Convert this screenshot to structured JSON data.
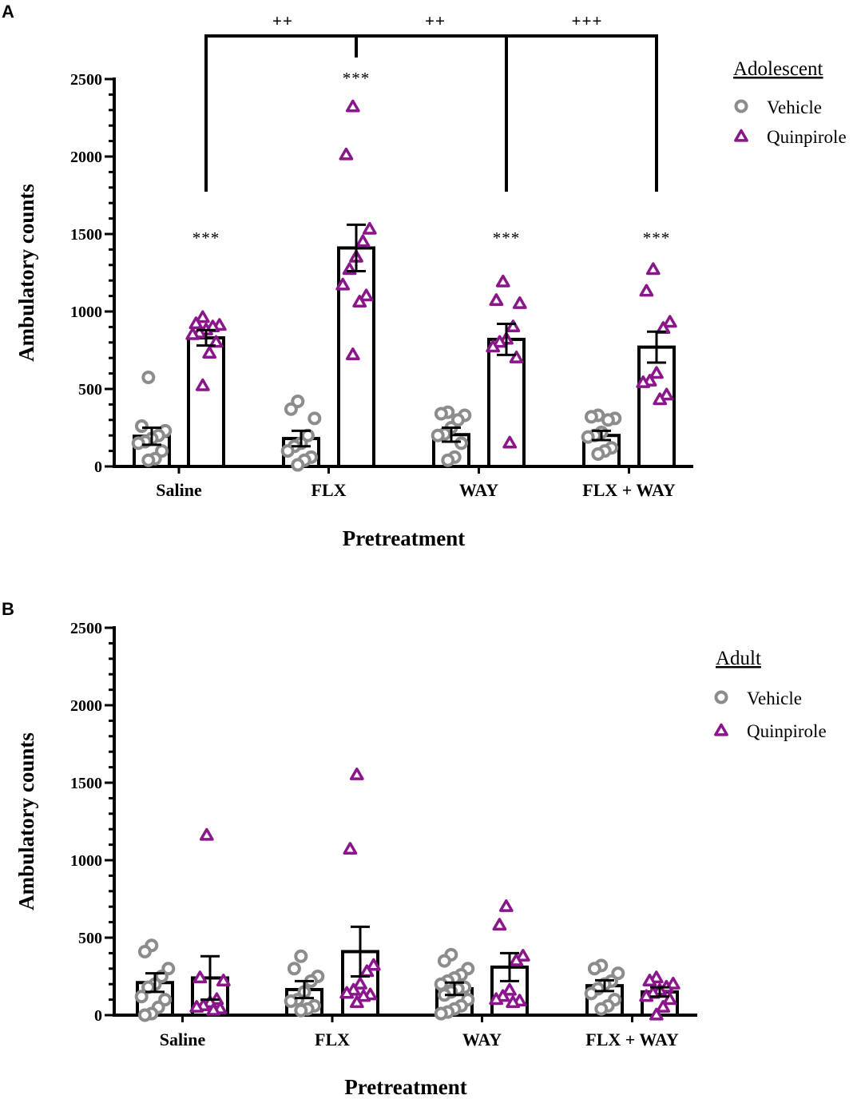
{
  "chart_data": [
    {
      "panel_label": "A",
      "type": "bar",
      "xlabel": "Pretreatment",
      "ylabel": "Ambulatory counts",
      "ylim": [
        0,
        2500
      ],
      "yticks": [
        0,
        500,
        1000,
        1500,
        2000,
        2500
      ],
      "categories": [
        "Saline",
        "FLX",
        "WAY",
        "FLX + WAY"
      ],
      "legend": {
        "title": "Adolescent",
        "entries": [
          {
            "name": "Vehicle",
            "marker": "circle",
            "color": "#8c8c8c"
          },
          {
            "name": "Quinpirole",
            "marker": "triangle",
            "color": "#8b168b"
          }
        ]
      },
      "series": [
        {
          "name": "Vehicle",
          "values": [
            195,
            180,
            205,
            200
          ],
          "sem": [
            55,
            50,
            45,
            30
          ],
          "points": [
            [
              575,
              260,
              230,
              200,
              180,
              160,
              150,
              100,
              50,
              40
            ],
            [
              420,
              370,
              310,
              200,
              150,
              130,
              100,
              60,
              40,
              10
            ],
            [
              350,
              340,
              330,
              300,
              250,
              210,
              200,
              150,
              60,
              40
            ],
            [
              330,
              320,
              310,
              300,
              220,
              200,
              190,
              120,
              100,
              80
            ]
          ]
        },
        {
          "name": "Quinpirole",
          "values": [
            830,
            1410,
            820,
            770
          ],
          "sem": [
            50,
            150,
            100,
            100
          ],
          "points": [
            [
              960,
              920,
              910,
              900,
              880,
              860,
              850,
              800,
              730,
              520
            ],
            [
              2320,
              2010,
              1530,
              1450,
              1350,
              1270,
              1170,
              1100,
              1060,
              720
            ],
            [
              1190,
              1070,
              1050,
              900,
              820,
              800,
              770,
              700,
              150
            ],
            [
              1270,
              1130,
              930,
              890,
              600,
              550,
              540,
              460,
              430
            ]
          ]
        }
      ],
      "annotations": {
        "quinpirole_vs_vehicle": [
          "***",
          "***",
          "***",
          "***"
        ],
        "brackets": [
          {
            "label": "++",
            "from": "Saline",
            "to": "FLX"
          },
          {
            "label": "++",
            "from": "FLX",
            "to": "WAY"
          },
          {
            "label": "+++",
            "from": "FLX",
            "to": "FLX + WAY"
          }
        ]
      }
    },
    {
      "panel_label": "B",
      "type": "bar",
      "xlabel": "Pretreatment",
      "ylabel": "Ambulatory counts",
      "ylim": [
        0,
        2500
      ],
      "yticks": [
        0,
        500,
        1000,
        1500,
        2000,
        2500
      ],
      "categories": [
        "Saline",
        "FLX",
        "WAY",
        "FLX + WAY"
      ],
      "legend": {
        "title": "Adult",
        "entries": [
          {
            "name": "Vehicle",
            "marker": "circle",
            "color": "#8c8c8c"
          },
          {
            "name": "Quinpirole",
            "marker": "triangle",
            "color": "#8b168b"
          }
        ]
      },
      "series": [
        {
          "name": "Vehicle",
          "values": [
            210,
            165,
            170,
            190
          ],
          "sem": [
            60,
            55,
            40,
            35
          ],
          "points": [
            [
              450,
              410,
              300,
              250,
              200,
              180,
              120,
              100,
              50,
              10,
              0
            ],
            [
              380,
              300,
              250,
              220,
              150,
              100,
              90,
              60,
              40,
              30
            ],
            [
              390,
              350,
              300,
              260,
              240,
              220,
              200,
              180,
              170,
              150,
              130,
              100,
              60,
              40,
              20,
              10
            ],
            [
              320,
              300,
              270,
              220,
              200,
              170,
              140,
              100,
              60,
              40
            ]
          ]
        },
        {
          "name": "Quinpirole",
          "values": [
            240,
            410,
            310,
            150
          ],
          "sem": [
            140,
            160,
            90,
            30
          ],
          "points": [
            [
              1160,
              240,
              220,
              100,
              80,
              60,
              50,
              40,
              30
            ],
            [
              1550,
              1070,
              320,
              280,
              200,
              160,
              140,
              130,
              120,
              80
            ],
            [
              700,
              580,
              380,
              350,
              160,
              120,
              100,
              90,
              80
            ],
            [
              240,
              220,
              200,
              180,
              160,
              140,
              120,
              100,
              50,
              0
            ]
          ]
        }
      ],
      "annotations": {}
    }
  ]
}
